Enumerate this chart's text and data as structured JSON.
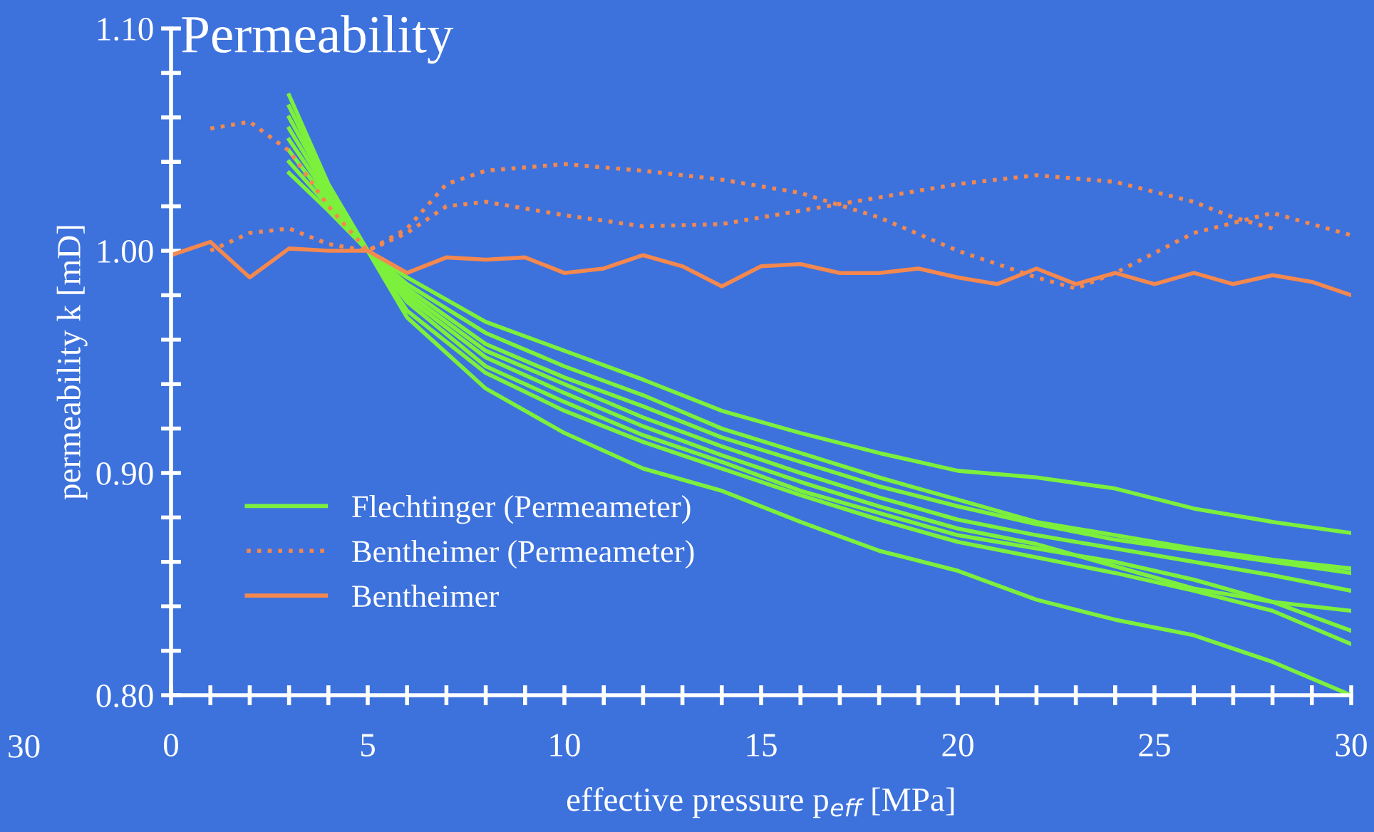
{
  "chart_data": {
    "type": "line",
    "title": "Permeability",
    "xlabel": "effective pressure p$_{eff}$ [MPa]",
    "ylabel": "permeability k [mD]",
    "xlim": [
      0,
      30
    ],
    "ylim": [
      0.8,
      1.1
    ],
    "xticks": [
      0,
      {
        "value": 1,
        "label": null
      },
      {
        "value": 2,
        "label": null
      },
      {
        "value": 3,
        "label": null
      },
      {
        "value": 4,
        "label": null
      },
      5,
      {
        "value": 6,
        "label": null
      },
      {
        "value": 7,
        "label": null
      },
      {
        "value": 8,
        "label": null
      },
      {
        "value": 9,
        "label": null
      },
      10,
      {
        "value": 11,
        "label": null
      },
      {
        "value": 12,
        "label": null
      },
      {
        "value": 13,
        "label": null
      },
      {
        "value": 14,
        "label": null
      },
      15,
      {
        "value": 16,
        "label": null
      },
      {
        "value": 17,
        "label": null
      },
      {
        "value": 18,
        "label": null
      },
      {
        "value": 19,
        "label": null
      },
      20,
      {
        "value": 21,
        "label": null
      },
      {
        "value": 22,
        "label": null
      },
      {
        "value": 23,
        "label": null
      },
      {
        "value": 24,
        "label": null
      },
      25,
      {
        "value": 26,
        "label": null
      },
      {
        "value": 27,
        "label": null
      },
      {
        "value": 28,
        "label": null
      },
      {
        "value": 29,
        "label": null
      },
      30
    ],
    "yticks": [
      {
        "value": 0.8,
        "label": "0.80"
      },
      {
        "value": 0.82,
        "label": null
      },
      {
        "value": 0.84,
        "label": null
      },
      {
        "value": 0.86,
        "label": null
      },
      {
        "value": 0.88,
        "label": null
      },
      {
        "value": 0.9,
        "label": "0.90"
      },
      {
        "value": 0.92,
        "label": null
      },
      {
        "value": 0.94,
        "label": null
      },
      {
        "value": 0.96,
        "label": null
      },
      {
        "value": 0.98,
        "label": null
      },
      {
        "value": 1.0,
        "label": "1.00"
      },
      {
        "value": 1.02,
        "label": null
      },
      {
        "value": 1.04,
        "label": null
      },
      {
        "value": 1.06,
        "label": null
      },
      {
        "value": 1.08,
        "label": null
      },
      {
        "value": 1.1,
        "label": "1.10"
      }
    ],
    "grid": false,
    "legend": "bottom left",
    "marker": "none",
    "annotations": [
      "30"
    ],
    "series": [
      {
        "name": "Flechtinger (Permeameter)",
        "color": "#7cf03c",
        "line_style": "solid",
        "x": [
          3,
          4,
          5,
          6,
          8,
          10,
          12,
          14,
          16,
          18,
          20,
          22,
          24,
          26,
          28,
          30
        ],
        "values": [
          1.035,
          1.018,
          1.0,
          0.988,
          0.968,
          0.955,
          0.942,
          0.928,
          0.918,
          0.909,
          0.901,
          0.898,
          0.893,
          0.884,
          0.878,
          0.873
        ]
      },
      {
        "color": "#7cf03c",
        "line_style": "solid",
        "x": [
          3,
          4,
          5,
          6,
          8,
          10,
          12,
          14,
          16,
          18,
          20,
          22,
          24,
          26,
          28,
          30
        ],
        "values": [
          1.04,
          1.02,
          1.0,
          0.985,
          0.963,
          0.948,
          0.935,
          0.92,
          0.909,
          0.898,
          0.888,
          0.878,
          0.872,
          0.866,
          0.861,
          0.857
        ]
      },
      {
        "color": "#7cf03c",
        "line_style": "solid",
        "x": [
          3,
          4,
          5,
          6,
          8,
          10,
          12,
          14,
          16,
          18,
          20,
          22,
          24,
          26,
          28,
          30
        ],
        "values": [
          1.045,
          1.022,
          1.0,
          0.983,
          0.958,
          0.943,
          0.93,
          0.916,
          0.905,
          0.894,
          0.885,
          0.877,
          0.87,
          0.865,
          0.86,
          0.855
        ]
      },
      {
        "color": "#7cf03c",
        "line_style": "solid",
        "x": [
          3,
          4,
          5,
          6,
          8,
          10,
          12,
          14,
          16,
          18,
          20,
          22,
          24,
          26,
          28,
          30
        ],
        "values": [
          1.05,
          1.024,
          1.0,
          0.981,
          0.955,
          0.94,
          0.925,
          0.912,
          0.9,
          0.889,
          0.879,
          0.872,
          0.866,
          0.86,
          0.854,
          0.847
        ]
      },
      {
        "color": "#7cf03c",
        "line_style": "solid",
        "x": [
          3,
          4,
          5,
          6,
          8,
          10,
          12,
          14,
          16,
          18,
          20,
          22,
          24,
          26,
          28,
          30
        ],
        "values": [
          1.055,
          1.026,
          1.0,
          0.979,
          0.952,
          0.936,
          0.921,
          0.908,
          0.896,
          0.885,
          0.875,
          0.868,
          0.858,
          0.848,
          0.842,
          0.838
        ]
      },
      {
        "color": "#7cf03c",
        "line_style": "solid",
        "x": [
          3,
          4,
          5,
          6,
          8,
          10,
          12,
          14,
          16,
          18,
          20,
          22,
          24,
          26,
          28,
          30
        ],
        "values": [
          1.06,
          1.028,
          1.0,
          0.977,
          0.948,
          0.932,
          0.917,
          0.905,
          0.892,
          0.882,
          0.872,
          0.866,
          0.86,
          0.852,
          0.842,
          0.829
        ]
      },
      {
        "color": "#7cf03c",
        "line_style": "solid",
        "x": [
          3,
          4,
          5,
          6,
          8,
          10,
          12,
          14,
          16,
          18,
          20,
          22,
          24,
          26,
          28,
          30
        ],
        "values": [
          1.065,
          1.029,
          1.0,
          0.973,
          0.945,
          0.928,
          0.914,
          0.902,
          0.89,
          0.879,
          0.869,
          0.862,
          0.855,
          0.847,
          0.838,
          0.823
        ]
      },
      {
        "color": "#7cf03c",
        "line_style": "solid",
        "x": [
          3,
          4,
          5,
          6,
          8,
          10,
          12,
          14,
          16,
          18,
          20,
          22,
          24,
          26,
          28,
          30
        ],
        "values": [
          1.07,
          1.03,
          1.0,
          0.97,
          0.938,
          0.918,
          0.902,
          0.892,
          0.878,
          0.865,
          0.856,
          0.843,
          0.834,
          0.827,
          0.815,
          0.8
        ]
      },
      {
        "name": "Bentheimer (Permeameter)",
        "color": "#f4884e",
        "line_style": "dotted",
        "x": [
          1,
          2,
          3,
          4,
          5,
          6,
          7,
          8,
          10,
          12,
          14,
          16,
          18,
          20,
          22,
          23,
          24,
          26,
          28,
          30
        ],
        "values": [
          1.055,
          1.058,
          1.045,
          1.02,
          1.0,
          1.01,
          1.03,
          1.036,
          1.039,
          1.036,
          1.032,
          1.026,
          1.015,
          1.0,
          0.988,
          0.983,
          0.99,
          1.008,
          1.017,
          1.007
        ]
      },
      {
        "color": "#f4884e",
        "line_style": "dotted",
        "x": [
          1,
          2,
          3,
          4,
          5,
          6,
          7,
          8,
          10,
          12,
          14,
          16,
          18,
          20,
          22,
          24,
          26,
          27,
          28
        ],
        "values": [
          1.0,
          1.008,
          1.01,
          1.003,
          1.0,
          1.008,
          1.02,
          1.022,
          1.016,
          1.011,
          1.012,
          1.018,
          1.024,
          1.03,
          1.034,
          1.031,
          1.022,
          1.015,
          1.01
        ]
      },
      {
        "name": "Bentheimer",
        "color": "#f4884e",
        "line_style": "solid",
        "x": [
          0,
          1,
          2,
          3,
          4,
          5,
          6,
          7,
          8,
          9,
          10,
          11,
          12,
          13,
          14,
          15,
          16,
          17,
          18,
          19,
          20,
          21,
          22,
          23,
          24,
          25,
          26,
          27,
          28,
          29,
          30
        ],
        "values": [
          0.998,
          1.004,
          0.988,
          1.001,
          1.0,
          1.0,
          0.99,
          0.997,
          0.996,
          0.997,
          0.99,
          0.992,
          0.998,
          0.993,
          0.984,
          0.993,
          0.994,
          0.99,
          0.99,
          0.992,
          0.988,
          0.985,
          0.992,
          0.985,
          0.99,
          0.985,
          0.99,
          0.985,
          0.989,
          0.986,
          0.98
        ]
      }
    ]
  }
}
